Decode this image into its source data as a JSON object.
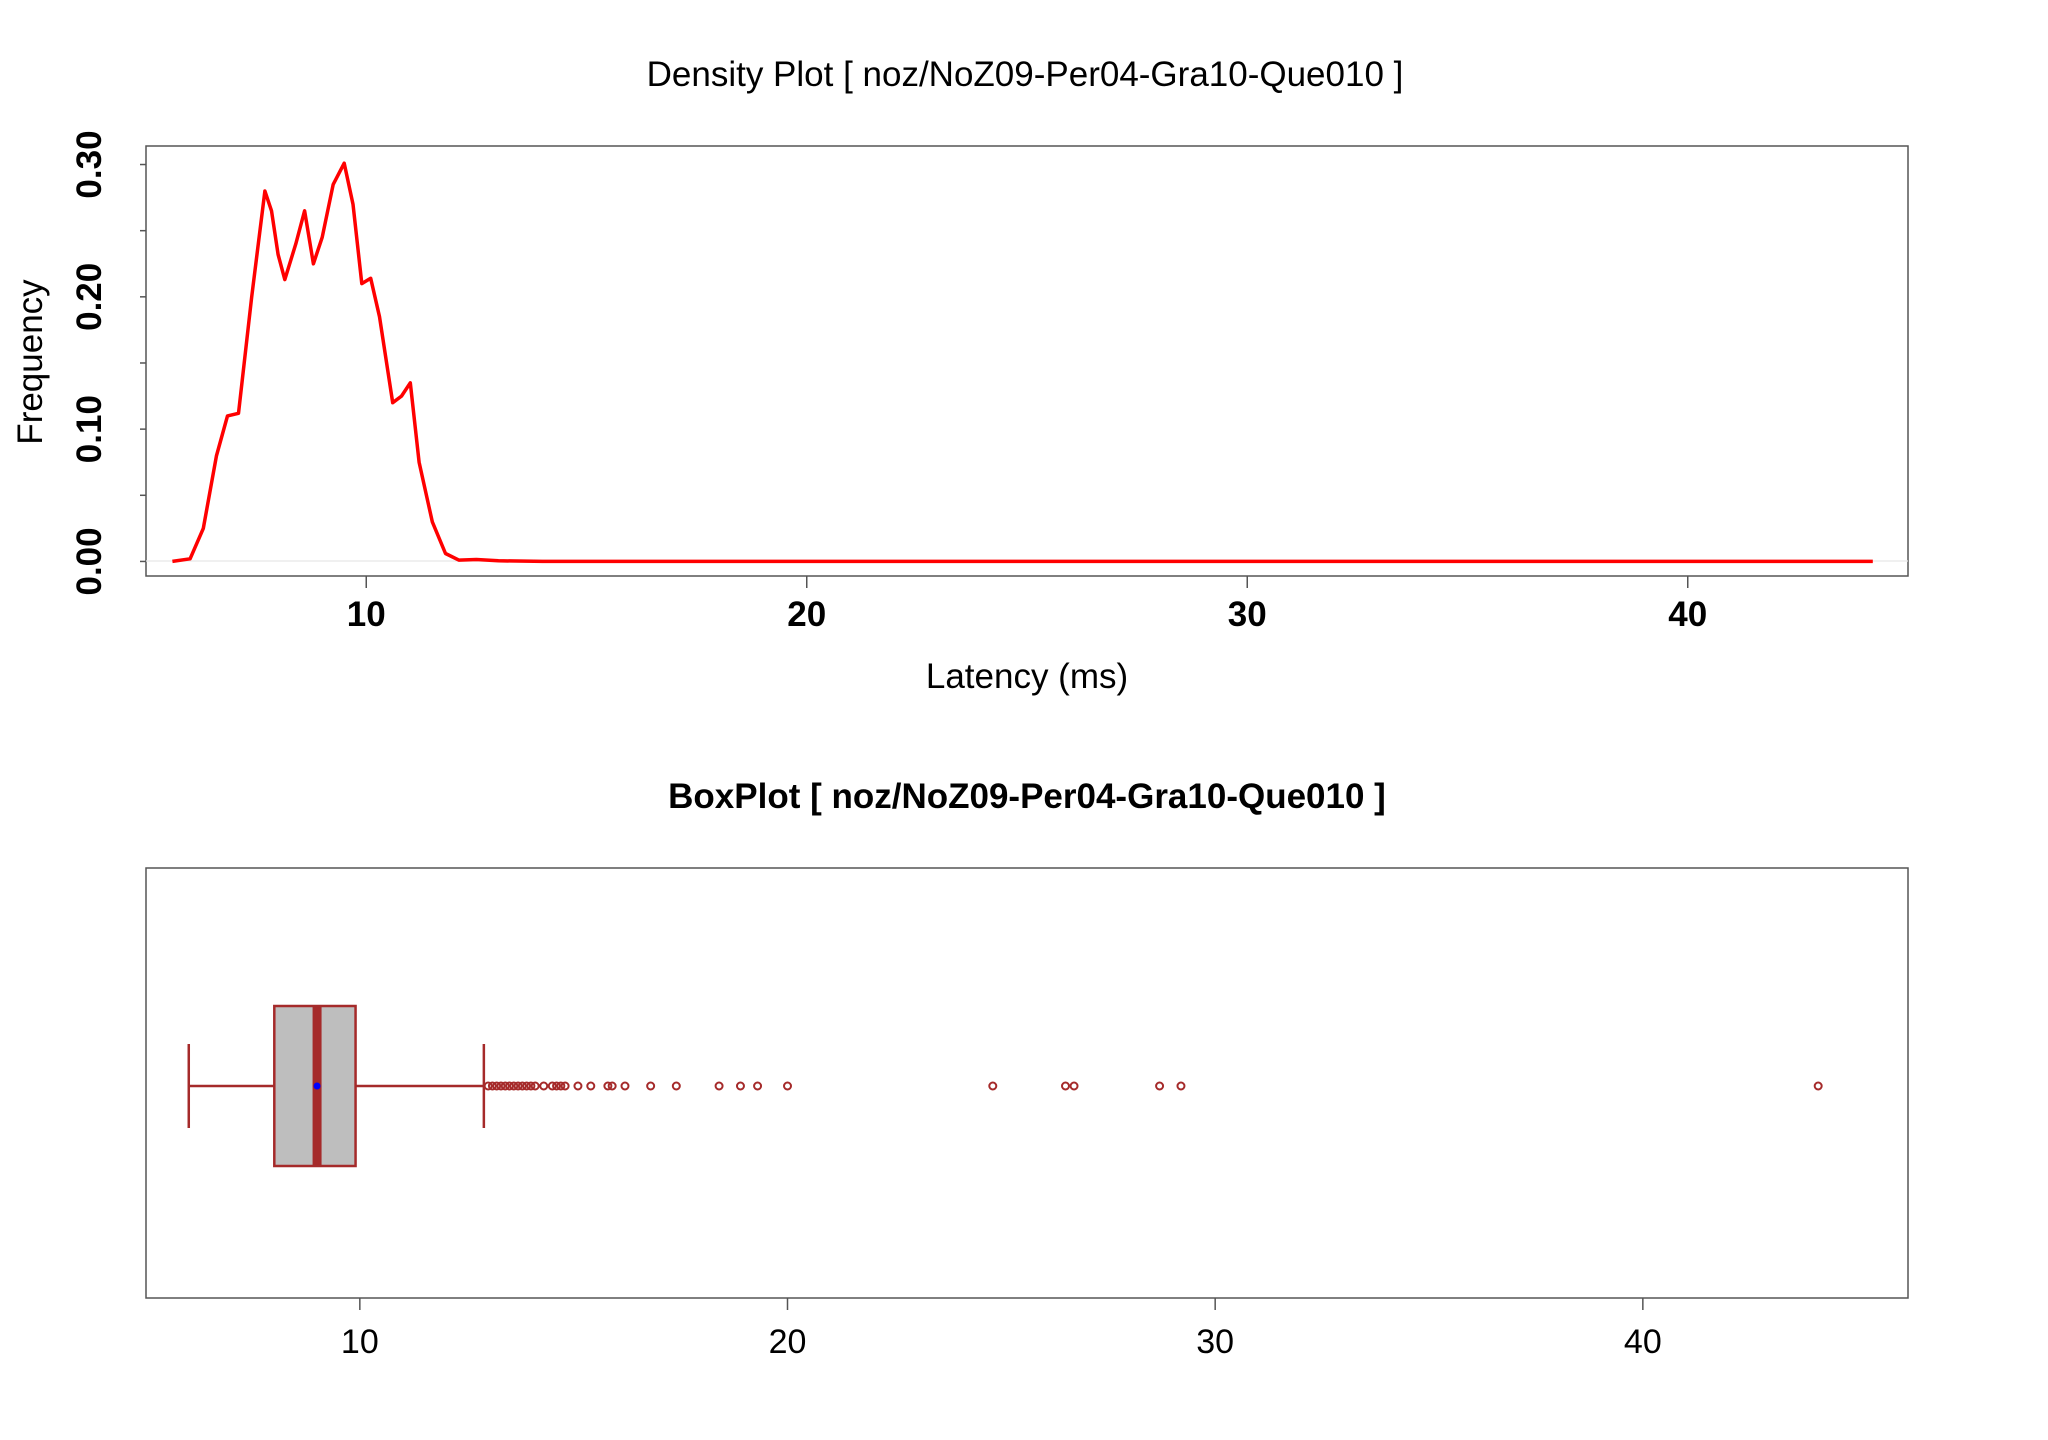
{
  "chart_data": [
    {
      "type": "line",
      "title": "Density Plot [ noz/NoZ09-Per04-Gra10-Que010 ]",
      "xlabel": "Latency (ms)",
      "ylabel": "Frequency",
      "xlim": [
        5.0,
        45.0
      ],
      "ylim": [
        -0.011,
        0.314
      ],
      "x_ticks": [
        10,
        20,
        30,
        40
      ],
      "x_tick_labels": [
        "10",
        "20",
        "30",
        "40"
      ],
      "y_ticks": [
        0.0,
        0.1,
        0.2,
        0.3
      ],
      "y_tick_labels": [
        "0.00",
        "0.10",
        "0.20",
        "0.30"
      ],
      "y_minor_ticks": [
        0.05,
        0.15,
        0.25
      ],
      "grid": false,
      "line_color": "#ff0000",
      "series": [
        {
          "x": [
            5.6,
            6.0,
            6.3,
            6.6,
            6.85,
            7.1,
            7.4,
            7.7,
            7.85,
            8.0,
            8.15,
            8.4,
            8.6,
            8.8,
            9.0,
            9.25,
            9.5,
            9.7,
            9.9,
            10.1,
            10.3,
            10.6,
            10.8,
            11.0,
            11.2,
            11.5,
            11.8,
            12.1,
            12.5,
            13.0,
            14.0,
            20.0,
            30.0,
            44.2
          ],
          "y": [
            0.0,
            0.002,
            0.025,
            0.08,
            0.11,
            0.112,
            0.2,
            0.28,
            0.265,
            0.232,
            0.213,
            0.24,
            0.265,
            0.225,
            0.245,
            0.285,
            0.301,
            0.27,
            0.21,
            0.214,
            0.185,
            0.12,
            0.125,
            0.135,
            0.075,
            0.03,
            0.006,
            0.001,
            0.0015,
            0.0005,
            0.0,
            0.0,
            0.0,
            0.0
          ]
        }
      ]
    },
    {
      "type": "box",
      "title": "BoxPlot [ noz/NoZ09-Per04-Gra10-Que010 ]",
      "xlim": [
        5.0,
        46.2
      ],
      "x_ticks": [
        10,
        20,
        30,
        40
      ],
      "x_tick_labels": [
        "10",
        "20",
        "30",
        "40"
      ],
      "box_fill": "#bebebe",
      "line_color": "#a52a2a",
      "mean_color": "#0000ff",
      "whisker_low": 6.0,
      "q1": 8.0,
      "median": 9.0,
      "q3": 9.9,
      "whisker_high": 12.9,
      "mean": 9.0,
      "outliers": [
        13.0,
        13.1,
        13.2,
        13.3,
        13.4,
        13.5,
        13.6,
        13.7,
        13.8,
        13.9,
        14.0,
        14.1,
        14.3,
        14.5,
        14.6,
        14.7,
        14.8,
        15.1,
        15.4,
        15.8,
        15.9,
        16.2,
        16.8,
        17.4,
        18.4,
        18.9,
        19.3,
        20.0,
        24.8,
        26.5,
        26.7,
        28.7,
        29.2,
        44.1
      ]
    }
  ]
}
